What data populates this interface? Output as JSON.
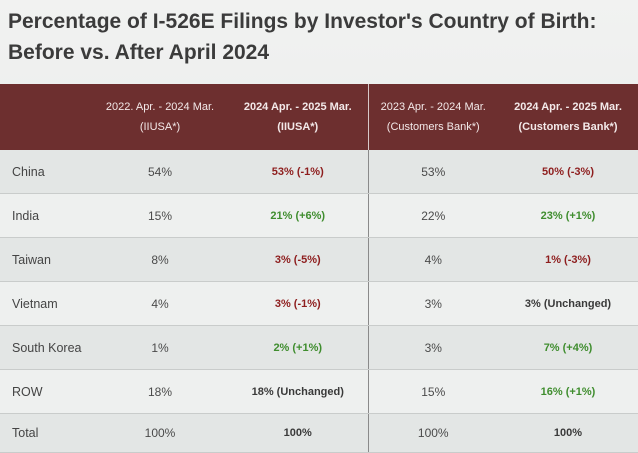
{
  "title_line1": "Percentage of I-526E Filings by Investor's Country of Birth:",
  "title_line2": "Before vs. After April 2024",
  "headers": [
    {
      "line1": "",
      "line2": ""
    },
    {
      "line1": "2022. Apr. - 2024 Mar.",
      "line2": "(IIUSA*)"
    },
    {
      "line1": "2024 Apr. - 2025 Mar.",
      "line2": "(IIUSA*)"
    },
    {
      "line1": "2023 Apr. - 2024 Mar.",
      "line2": "(Customers Bank*)"
    },
    {
      "line1": "2024 Apr. - 2025 Mar.",
      "line2": "(Customers Bank*)"
    }
  ],
  "rows": [
    {
      "country": "China",
      "c1": "54%",
      "c2": "53% (-1%)",
      "c3": "53%",
      "c4": "50% (-3%)"
    },
    {
      "country": "India",
      "c1": "15%",
      "c2": "21% (+6%)",
      "c3": "22%",
      "c4": "23% (+1%)"
    },
    {
      "country": "Taiwan",
      "c1": "8%",
      "c2": "3% (-5%)",
      "c3": "4%",
      "c4": "1% (-3%)"
    },
    {
      "country": "Vietnam",
      "c1": "4%",
      "c2": "3% (-1%)",
      "c3": "3%",
      "c4": "3% (Unchanged)"
    },
    {
      "country": "South Korea",
      "c1": "1%",
      "c2": "2% (+1%)",
      "c3": "3%",
      "c4": "7% (+4%)"
    },
    {
      "country": "ROW",
      "c1": "18%",
      "c2": "18% (Unchanged)",
      "c3": "15%",
      "c4": "16% (+1%)"
    }
  ],
  "total": {
    "label": "Total",
    "c1": "100%",
    "c2": "100%",
    "c3": "100%",
    "c4": "100%"
  },
  "colors": {
    "header_bg": "#6d2f2f",
    "decrease": "#8e1e1e",
    "increase": "#3f8d2e"
  }
}
